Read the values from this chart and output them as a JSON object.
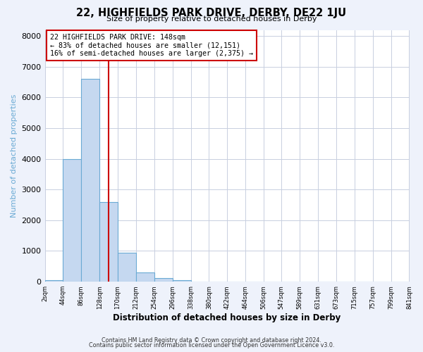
{
  "title": "22, HIGHFIELDS PARK DRIVE, DERBY, DE22 1JU",
  "subtitle": "Size of property relative to detached houses in Derby",
  "xlabel": "Distribution of detached houses by size in Derby",
  "ylabel": "Number of detached properties",
  "bin_edges": [
    2,
    44,
    86,
    128,
    170,
    212,
    254,
    296,
    338,
    380,
    422,
    464,
    506,
    547,
    589,
    631,
    673,
    715,
    757,
    799,
    841
  ],
  "bar_heights": [
    50,
    4000,
    6600,
    2600,
    950,
    310,
    120,
    50,
    0,
    0,
    0,
    0,
    0,
    0,
    0,
    0,
    0,
    0,
    0,
    0
  ],
  "bar_color": "#c5d8f0",
  "bar_edge_color": "#6aaad4",
  "vline_x": 148,
  "vline_color": "#cc0000",
  "annotation_box_text": "22 HIGHFIELDS PARK DRIVE: 148sqm\n← 83% of detached houses are smaller (12,151)\n16% of semi-detached houses are larger (2,375) →",
  "annotation_box_facecolor": "white",
  "annotation_box_edgecolor": "#cc0000",
  "ylim": [
    0,
    8200
  ],
  "yticks": [
    0,
    1000,
    2000,
    3000,
    4000,
    5000,
    6000,
    7000,
    8000
  ],
  "tick_labels": [
    "2sqm",
    "44sqm",
    "86sqm",
    "128sqm",
    "170sqm",
    "212sqm",
    "254sqm",
    "296sqm",
    "338sqm",
    "380sqm",
    "422sqm",
    "464sqm",
    "506sqm",
    "547sqm",
    "589sqm",
    "631sqm",
    "673sqm",
    "715sqm",
    "757sqm",
    "799sqm",
    "841sqm"
  ],
  "footer_line1": "Contains HM Land Registry data © Crown copyright and database right 2024.",
  "footer_line2": "Contains public sector information licensed under the Open Government Licence v3.0.",
  "bg_color": "#eef2fb",
  "plot_bg_color": "white",
  "grid_color": "#c8cfe0",
  "title_fontsize": 10.5,
  "subtitle_fontsize": 8,
  "ylabel_color": "#6aaad4",
  "annotation_fontsize": 7.2
}
